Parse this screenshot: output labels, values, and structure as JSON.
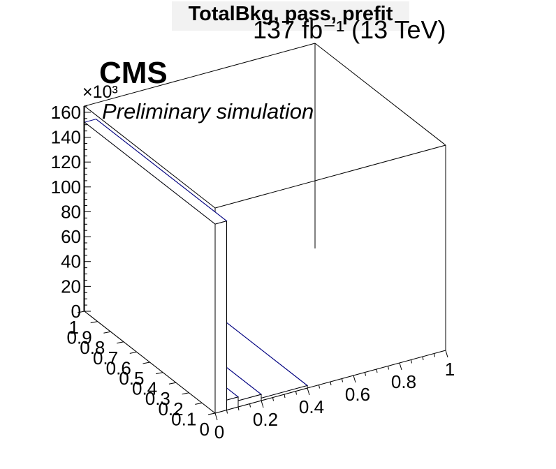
{
  "header": {
    "title": "TotalBkg, pass, prefit",
    "lumi": "137 fb⁻¹ (13 TeV)",
    "experiment": "CMS",
    "subtitle": "Preliminary simulation",
    "z_exponent": "×10³"
  },
  "chart_data": {
    "type": "lego",
    "title": "TotalBkg, pass, prefit",
    "z_exponent_label": "×10³",
    "x_axis": {
      "range": [
        0,
        1
      ],
      "ticks": [
        "0",
        "0.2",
        "0.4",
        "0.6",
        "0.8",
        "1"
      ]
    },
    "y_axis": {
      "range": [
        0,
        1
      ],
      "ticks": [
        "0",
        "0.1",
        "0.2",
        "0.3",
        "0.4",
        "0.5",
        "0.6",
        "0.7",
        "0.8",
        "0.9",
        "1"
      ]
    },
    "z_axis": {
      "range": [
        0,
        165
      ],
      "ticks": [
        "0",
        "20",
        "40",
        "60",
        "80",
        "100",
        "120",
        "140",
        "160"
      ]
    },
    "bins": [
      {
        "x": [
          0.0,
          0.05
        ],
        "y": [
          0.0,
          1.0
        ],
        "z": 152
      },
      {
        "x": [
          0.05,
          0.1
        ],
        "y": [
          0.0,
          1.0
        ],
        "z": 8
      },
      {
        "x": [
          0.1,
          0.2
        ],
        "y": [
          0.0,
          1.0
        ],
        "z": 5
      },
      {
        "x": [
          0.2,
          0.4
        ],
        "y": [
          0.0,
          1.0
        ],
        "z": 2
      }
    ],
    "box_top": 165,
    "grid": true,
    "colors": {
      "outline": "#000000",
      "histogram": "#000080",
      "title_fill": "#f2f2f2"
    }
  }
}
